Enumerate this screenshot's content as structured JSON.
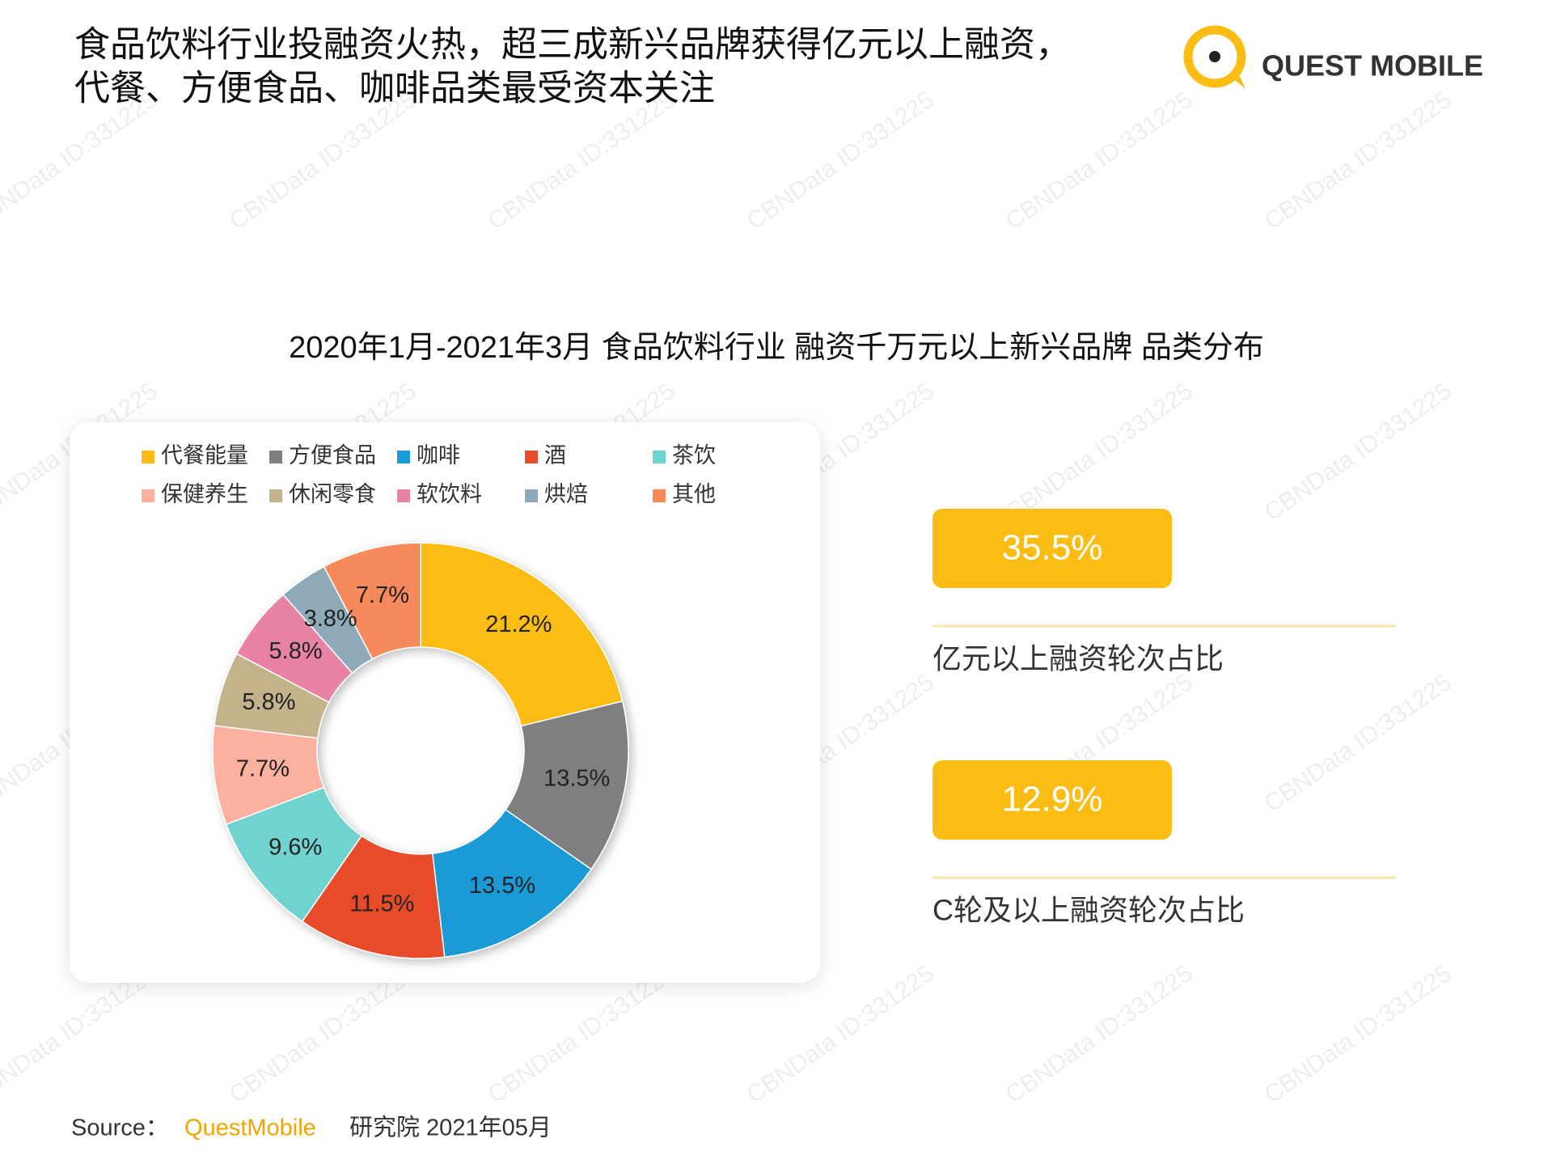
{
  "header": {
    "title_lines": [
      "食品饮料行业投融资火热，超三成新兴品牌获得亿元以上融资，",
      "代餐、方便食品、咖啡品类最受资本关注"
    ],
    "logo": "QUEST MOBILE"
  },
  "watermark": "CBNData ID:331225",
  "chart_data": {
    "type": "donut",
    "title": "2020年1月-2021年3月 食品饮料行业 融资千万元以上新兴品牌 品类分布",
    "categories": [
      "代餐能量",
      "方便食品",
      "咖啡",
      "酒",
      "茶饮",
      "保健养生",
      "休闲零食",
      "软饮料",
      "烘焙",
      "其他"
    ],
    "values": [
      21.2,
      13.5,
      13.5,
      11.5,
      9.6,
      7.7,
      5.8,
      5.8,
      3.8,
      7.7
    ],
    "value_labels": [
      "21.2%",
      "13.5%",
      "13.5%",
      "11.5%",
      "9.6%",
      "7.7%",
      "5.8%",
      "5.8%",
      "3.8%",
      "7.7%"
    ],
    "colors": [
      "#fbbc14",
      "#7f7f7f",
      "#1a9ad6",
      "#e84c2b",
      "#6fd3d0",
      "#fbb0a0",
      "#c2b38a",
      "#e983a3",
      "#8eaab8",
      "#f68a5b"
    ],
    "legend": "top"
  },
  "stats": [
    {
      "value": "35.5%",
      "label": "亿元以上融资轮次占比"
    },
    {
      "value": "12.9%",
      "label": "C轮及以上融资轮次占比"
    }
  ],
  "source": {
    "prefix": "Source：",
    "brand": "QuestMobile",
    "suffix": "研究院 2021年05月"
  }
}
